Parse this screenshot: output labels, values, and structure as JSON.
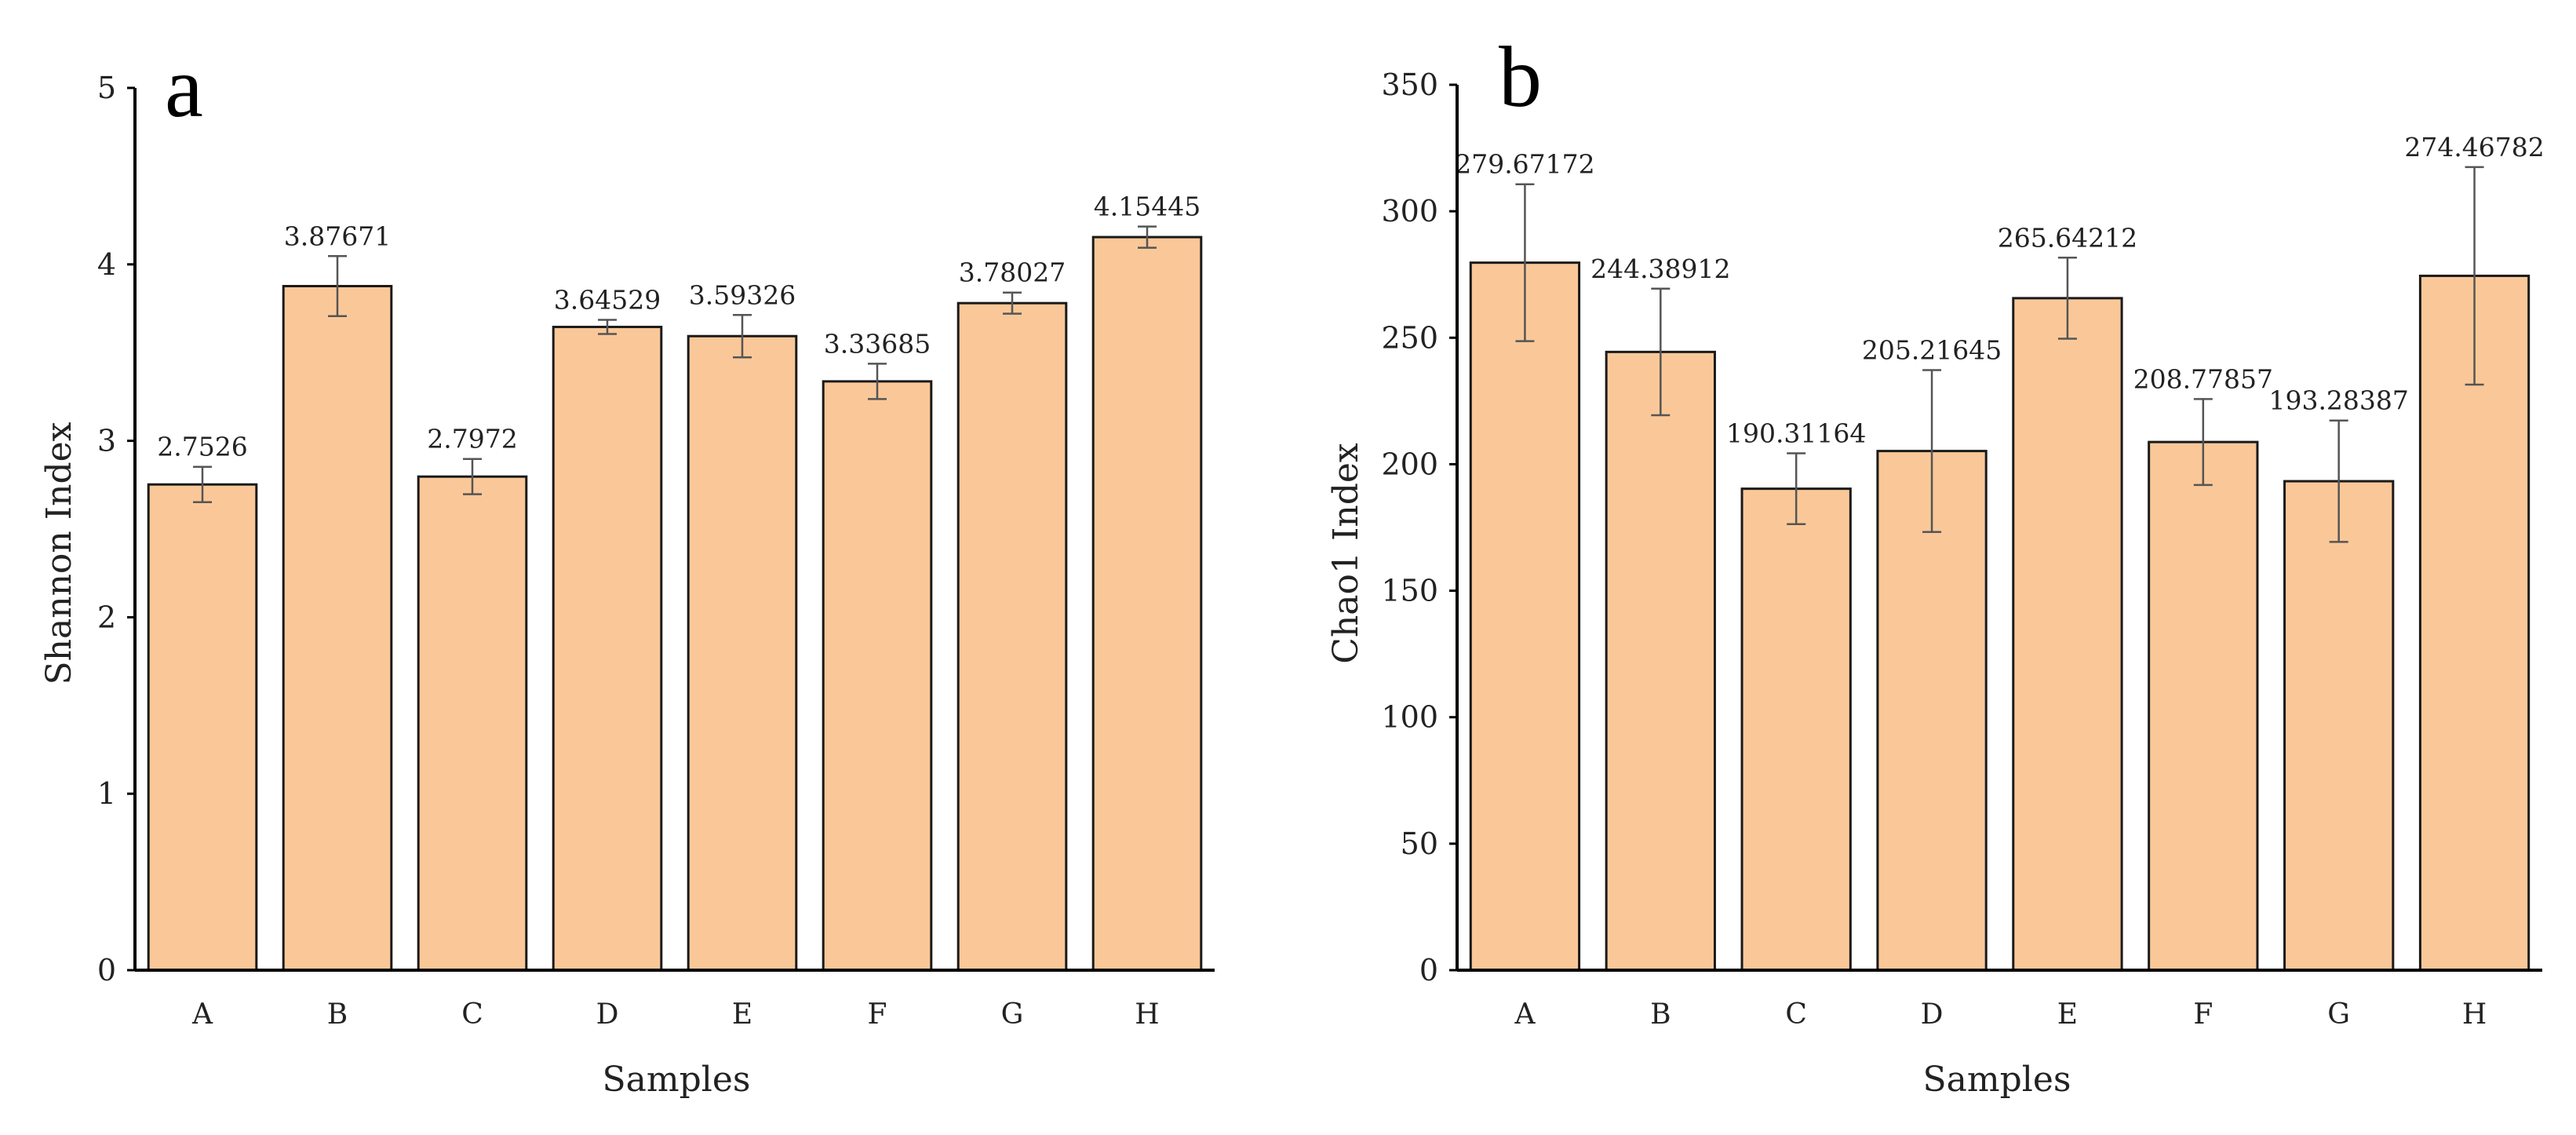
{
  "colors": {
    "bar_fill": "#FAC898",
    "bar_stroke": "#1a1a1a",
    "axis": "#000000",
    "error_bar": "#555555"
  },
  "chart_data": [
    {
      "panel": "a",
      "type": "bar",
      "categories": [
        "A",
        "B",
        "C",
        "D",
        "E",
        "F",
        "G",
        "H"
      ],
      "values": [
        2.7526,
        3.87671,
        2.7972,
        3.64529,
        3.59326,
        3.33685,
        3.78027,
        4.15445
      ],
      "value_labels": [
        "2.7526",
        "3.87671",
        "2.7972",
        "3.64529",
        "3.59326",
        "3.33685",
        "3.78027",
        "4.15445"
      ],
      "errors": [
        0.1,
        0.17,
        0.1,
        0.04,
        0.12,
        0.1,
        0.06,
        0.06
      ],
      "title": "",
      "xlabel": "Samples",
      "ylabel": "Shannon Index",
      "ylim": [
        0,
        5
      ],
      "yticks": [
        0,
        1,
        2,
        3,
        4,
        5
      ],
      "ytick_labels": [
        "0",
        "1",
        "2",
        "3",
        "4",
        "5"
      ],
      "grid": false,
      "legend": "none"
    },
    {
      "panel": "b",
      "type": "bar",
      "categories": [
        "A",
        "B",
        "C",
        "D",
        "E",
        "F",
        "G",
        "H"
      ],
      "values": [
        279.67172,
        244.38912,
        190.31164,
        205.21645,
        265.64212,
        208.77857,
        193.28387,
        274.46782
      ],
      "value_labels": [
        "279.67172",
        "244.38912",
        "190.31164",
        "205.21645",
        "265.64212",
        "208.77857",
        "193.28387",
        "274.46782"
      ],
      "errors": [
        31,
        25,
        14,
        32,
        16,
        17,
        24,
        43
      ],
      "title": "",
      "xlabel": "Samples",
      "ylabel": "Chao1 Index",
      "ylim": [
        0,
        350
      ],
      "yticks": [
        0,
        50,
        100,
        150,
        200,
        250,
        300,
        350
      ],
      "ytick_labels": [
        "0",
        "50",
        "100",
        "150",
        "200",
        "250",
        "300",
        "350"
      ],
      "grid": false,
      "legend": "none"
    }
  ]
}
